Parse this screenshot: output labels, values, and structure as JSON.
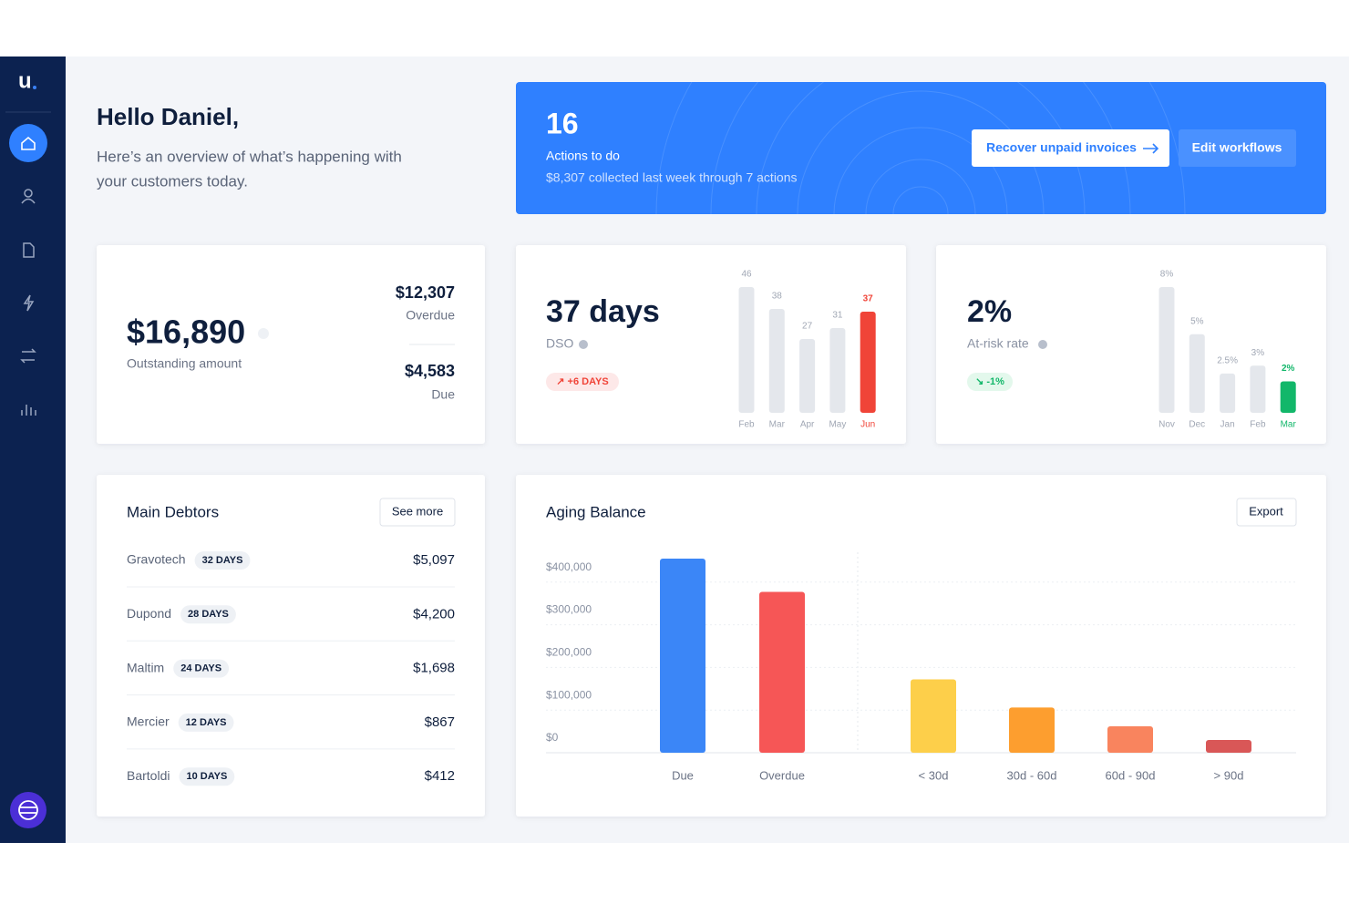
{
  "greeting": {
    "title": "Hello Daniel,",
    "subtitle_line1": "Here’s an overview of what’s happening with",
    "subtitle_line2": "your customers today."
  },
  "banner": {
    "count": "16",
    "label": "Actions to do",
    "note": "$8,307 collected last week through 7 actions",
    "primary_button": "Recover unpaid invoices",
    "secondary_button": "Edit workflows"
  },
  "outstanding": {
    "amount": "$16,890",
    "label": "Outstanding amount",
    "overdue_amount": "$12,307",
    "overdue_label": "Overdue",
    "due_amount": "$4,583",
    "due_label": "Due"
  },
  "dso": {
    "value": "37 days",
    "label": "DSO",
    "badge": "↗ +6 DAYS",
    "chart_data": {
      "type": "bar",
      "categories": [
        "Feb",
        "Mar",
        "Apr",
        "May",
        "Jun"
      ],
      "values": [
        46,
        38,
        27,
        31,
        37
      ],
      "colors": [
        "#e4e7ec",
        "#e4e7ec",
        "#e4e7ec",
        "#e4e7ec",
        "#f04438"
      ]
    }
  },
  "risk": {
    "value": "2%",
    "label": "At-risk rate",
    "badge": "↘ -1%",
    "chart_data": {
      "type": "bar",
      "categories": [
        "Nov",
        "Dec",
        "Jan",
        "Feb",
        "Mar"
      ],
      "values": [
        8,
        5,
        2.5,
        3,
        2
      ],
      "value_labels": [
        "8%",
        "5%",
        "2.5%",
        "3%",
        "2%"
      ],
      "colors": [
        "#e4e7ec",
        "#e4e7ec",
        "#e4e7ec",
        "#e4e7ec",
        "#12b76a"
      ]
    }
  },
  "debtors": {
    "title": "Main Debtors",
    "button": "See more",
    "rows": [
      {
        "name": "Gravotech",
        "badge": "32 DAYS",
        "amount": "$5,097"
      },
      {
        "name": "Dupond",
        "badge": "28 DAYS",
        "amount": "$4,200"
      },
      {
        "name": "Maltim",
        "badge": "24 DAYS",
        "amount": "$1,698"
      },
      {
        "name": "Mercier",
        "badge": "12 DAYS",
        "amount": "$867"
      },
      {
        "name": "Bartoldi",
        "badge": "10 DAYS",
        "amount": "$412"
      }
    ]
  },
  "aging": {
    "title": "Aging Balance",
    "button": "Export",
    "chart_data": {
      "type": "bar",
      "categories": [
        "Due",
        "Overdue",
        "< 30d",
        "30d - 60d",
        "60d - 90d",
        "> 90d"
      ],
      "values": [
        455000,
        377000,
        172000,
        106000,
        62000,
        30000
      ],
      "colors": [
        "#3b86f7",
        "#f65656",
        "#fdcf4a",
        "#fd9e2f",
        "#f9845e",
        "#d95757"
      ],
      "ylim": [
        0,
        470000
      ],
      "yticks": [
        {
          "value": 0,
          "label": "$0"
        },
        {
          "value": 100000,
          "label": "$100,000"
        },
        {
          "value": 200000,
          "label": "$200,000"
        },
        {
          "value": 300000,
          "label": "$300,000"
        },
        {
          "value": 400000,
          "label": "$400,000"
        }
      ],
      "grid": true
    }
  }
}
